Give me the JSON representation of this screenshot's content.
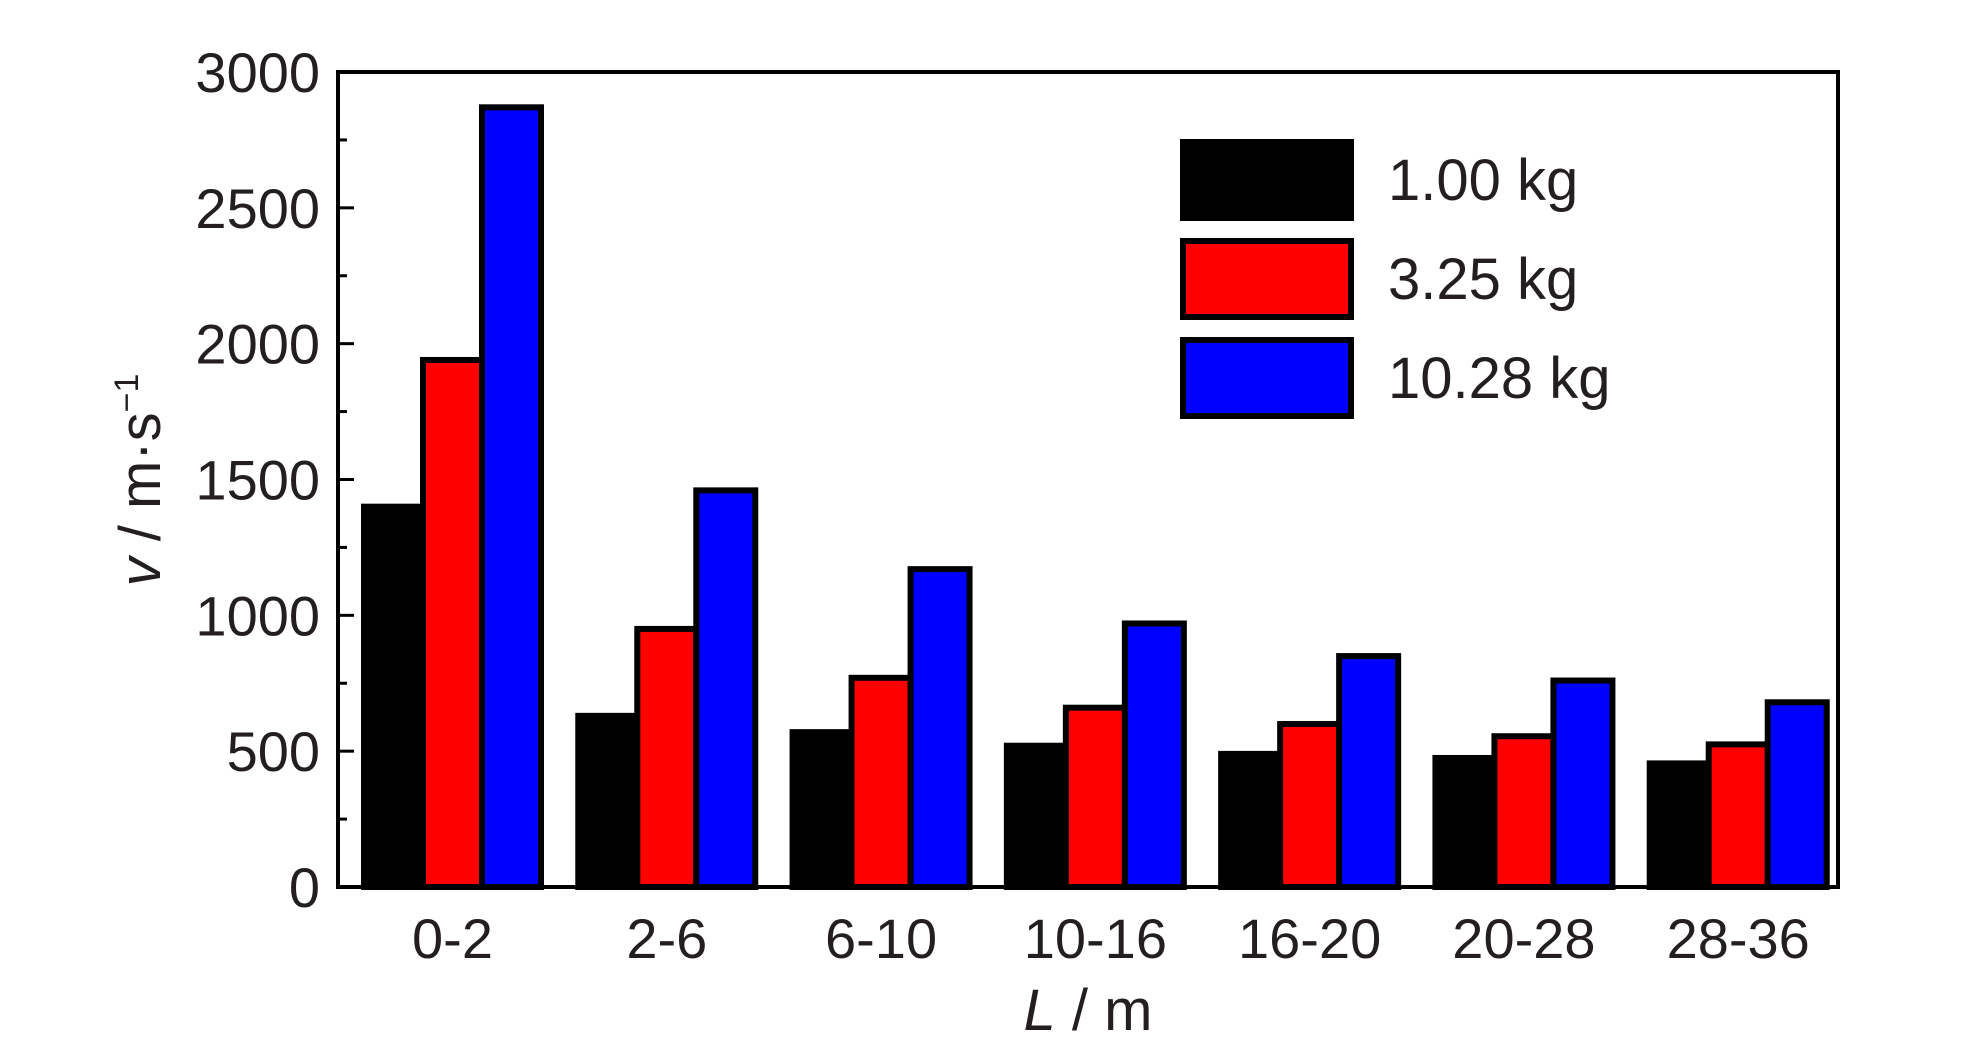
{
  "chart_data": {
    "type": "bar",
    "categories": [
      "0-2",
      "2-6",
      "6-10",
      "10-16",
      "16-20",
      "20-28",
      "28-36"
    ],
    "series": [
      {
        "name": "1.00 kg",
        "color": "#000000",
        "values": [
          1400,
          630,
          570,
          520,
          490,
          475,
          455
        ]
      },
      {
        "name": "3.25 kg",
        "color": "#ff0000",
        "values": [
          1940,
          950,
          770,
          660,
          600,
          555,
          525
        ]
      },
      {
        "name": "10.28 kg",
        "color": "#0000ff",
        "values": [
          2870,
          1460,
          1170,
          970,
          850,
          760,
          680
        ]
      }
    ],
    "xlabel": {
      "italic": "L",
      "rest": " / m"
    },
    "ylabel": {
      "italic": "v",
      "rest": " / m·s",
      "sup": "−1"
    },
    "ylim": [
      0,
      3000
    ],
    "yticks": [
      "0",
      "500",
      "1000",
      "1500",
      "2000",
      "2500",
      "3000"
    ],
    "grid": false,
    "legend_position": "top-right"
  }
}
